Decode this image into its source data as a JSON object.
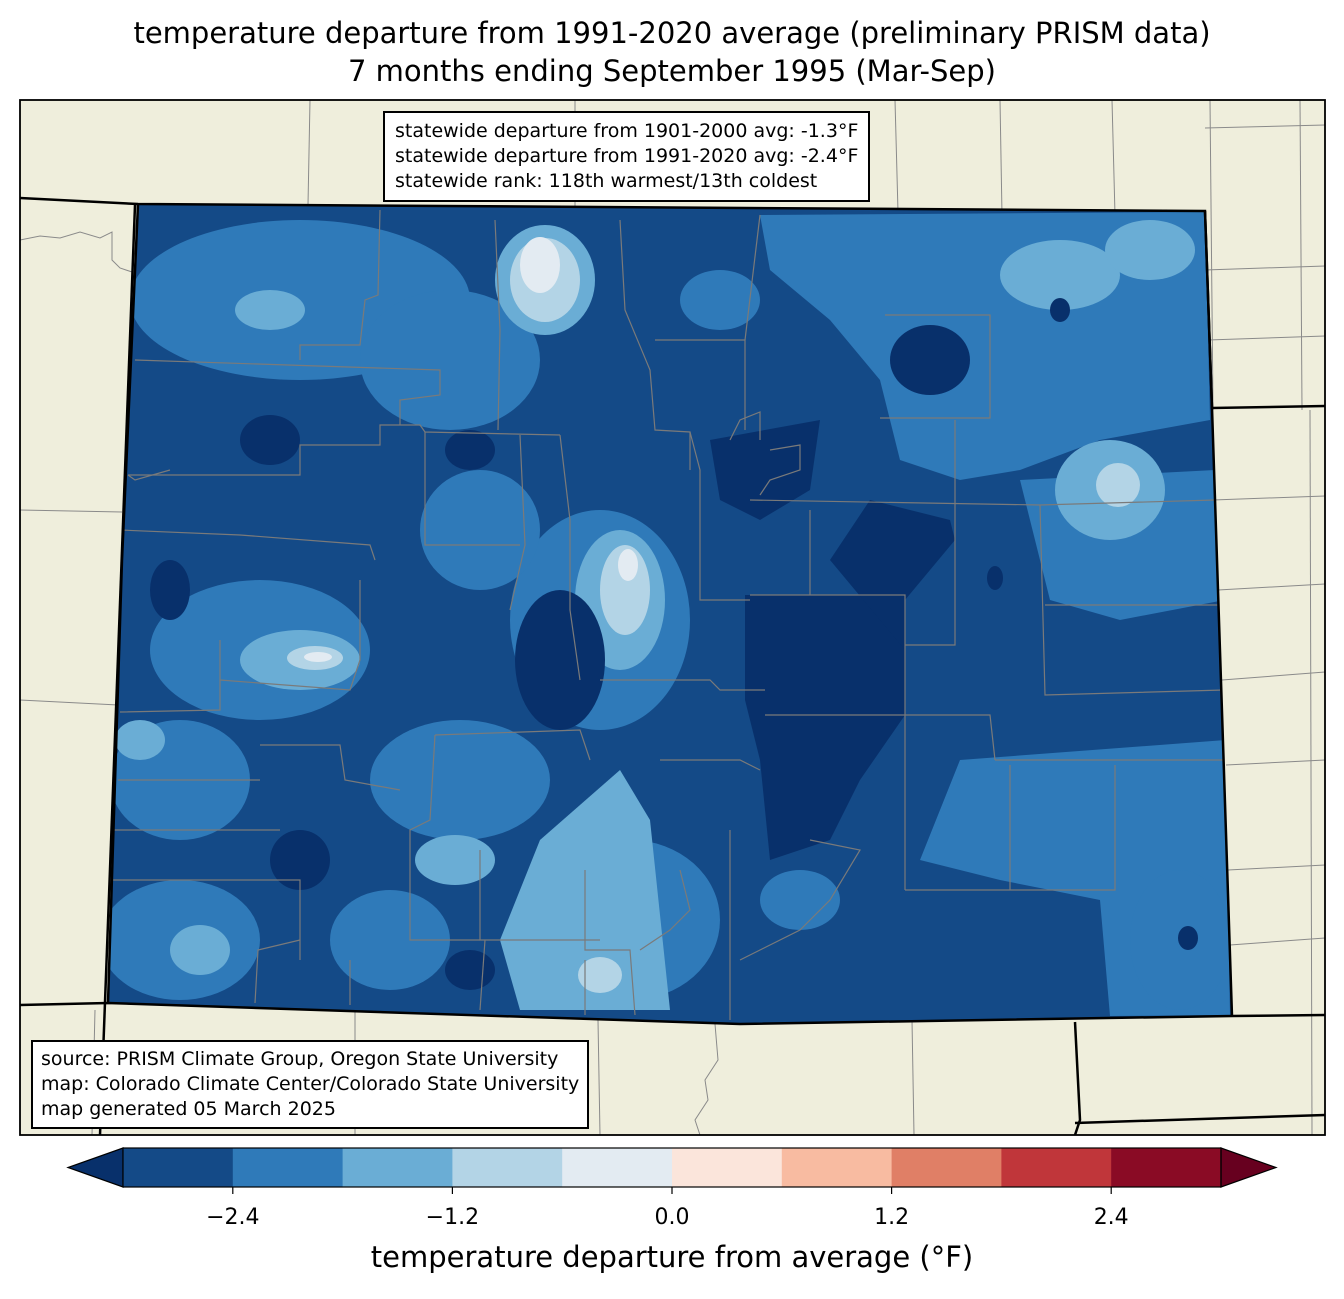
{
  "title": {
    "line1": "temperature departure from 1991-2020 average (preliminary PRISM data)",
    "line2": "7 months ending September 1995 (Mar-Sep)"
  },
  "stats": {
    "line1": "statewide departure from 1901-2000 avg: -1.3°F",
    "line2": "statewide departure from 1991-2020 avg: -2.4°F",
    "line3": "statewide rank: 118th warmest/13th coldest"
  },
  "credits": {
    "line1": "source: PRISM Climate Group, Oregon State University",
    "line2": "map: Colorado Climate Center/Colorado State University",
    "line3": "map generated 05 March 2025"
  },
  "colorbar": {
    "label": "temperature departure from average (°F)",
    "ticks": [
      "−2.4",
      "−1.2",
      "0.0",
      "1.2",
      "2.4"
    ],
    "tick_values": [
      -2.4,
      -1.2,
      0.0,
      1.2,
      2.4
    ],
    "range": [
      -3.0,
      3.0
    ],
    "bin_width": 0.6,
    "colors": [
      "#08306b",
      "#144a87",
      "#2f7ab9",
      "#6aadd5",
      "#b3d4e6",
      "#e3ebf2",
      "#fbe5db",
      "#f8bba1",
      "#e07f66",
      "#c0363a",
      "#8a0b25",
      "#67001f"
    ]
  },
  "map_colors": {
    "background": "#efeedc",
    "neighbor_border": "#8a8a8a",
    "state_border": "#000000",
    "county_border": "#7a7a7a"
  }
}
